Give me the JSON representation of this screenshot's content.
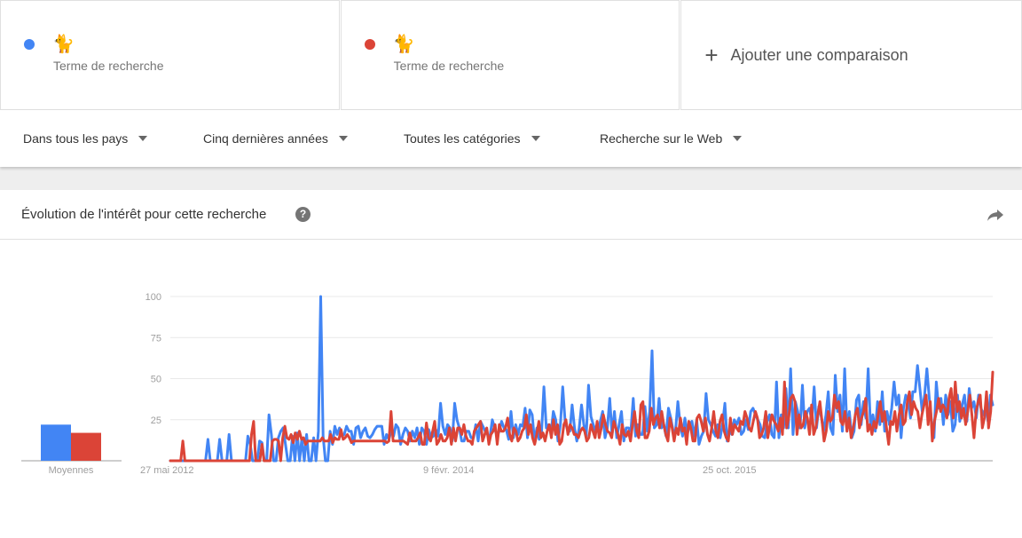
{
  "terms": [
    {
      "emoji": "🐈",
      "label": "Terme de recherche",
      "color": "#4285f4"
    },
    {
      "emoji": "🐈",
      "label": "Terme de recherche",
      "color": "#db4437"
    }
  ],
  "add_comparison": {
    "label": "Ajouter une comparaison",
    "icon": "plus-icon"
  },
  "filters": {
    "region": "Dans tous les pays",
    "period": "Cinq dernières années",
    "category": "Toutes les catégories",
    "search_type": "Recherche sur le Web"
  },
  "card": {
    "title": "Évolution de l'intérêt pour cette recherche",
    "help_icon": "?",
    "share_icon": "share-icon"
  },
  "chart_data": [
    {
      "type": "bar",
      "categories": [
        "Moyennes"
      ],
      "series": [
        {
          "values": [
            22
          ],
          "color": "#4285f4"
        },
        {
          "values": [
            17
          ],
          "color": "#db4437"
        }
      ]
    },
    {
      "type": "line",
      "x_tick_labels": [
        "27 mai 2012",
        "9 févr. 2014",
        "25 oct. 2015"
      ],
      "y_ticks": [
        25,
        50,
        75,
        100
      ],
      "ylim": [
        0,
        100
      ],
      "grid": true,
      "series": [
        {
          "color": "#4285f4",
          "values": [
            0,
            0,
            0,
            0,
            0,
            0,
            0,
            0,
            0,
            0,
            0,
            0,
            0,
            0,
            0,
            0,
            13,
            0,
            0,
            0,
            0,
            13,
            0,
            0,
            0,
            16,
            0,
            0,
            0,
            0,
            0,
            0,
            0,
            15,
            10,
            0,
            0,
            0,
            12,
            11,
            0,
            0,
            28,
            16,
            0,
            0,
            14,
            18,
            20,
            10,
            0,
            0,
            15,
            0,
            17,
            0,
            14,
            0,
            16,
            0,
            0,
            14,
            0,
            18,
            100,
            15,
            0,
            0,
            18,
            10,
            21,
            16,
            20,
            15,
            16,
            21,
            18,
            18,
            10,
            20,
            21,
            14,
            18,
            20,
            15,
            14,
            16,
            19,
            21,
            21,
            21,
            10,
            16,
            13,
            18,
            15,
            22,
            20,
            10,
            16,
            20,
            18,
            12,
            18,
            14,
            20,
            10,
            20,
            18,
            10,
            19,
            14,
            15,
            19,
            15,
            35,
            21,
            16,
            22,
            20,
            12,
            35,
            25,
            20,
            12,
            12,
            18,
            18,
            14,
            14,
            22,
            12,
            24,
            21,
            18,
            16,
            14,
            25,
            20,
            15,
            18,
            24,
            20,
            19,
            13,
            30,
            14,
            22,
            16,
            22,
            21,
            32,
            14,
            31,
            28,
            12,
            20,
            13,
            18,
            45,
            20,
            22,
            17,
            30,
            25,
            12,
            22,
            45,
            24,
            19,
            18,
            34,
            20,
            12,
            20,
            34,
            22,
            15,
            46,
            27,
            22,
            18,
            18,
            24,
            30,
            14,
            20,
            38,
            16,
            30,
            14,
            22,
            30,
            12,
            20,
            20,
            18,
            38,
            15,
            22,
            16,
            16,
            33,
            18,
            30,
            67,
            20,
            22,
            38,
            20,
            22,
            15,
            32,
            26,
            18,
            18,
            36,
            22,
            15,
            26,
            16,
            22,
            24,
            15,
            25,
            10,
            15,
            18,
            41,
            25,
            22,
            18,
            15,
            22,
            14,
            22,
            35,
            12,
            18,
            16,
            25,
            22,
            26,
            16,
            18,
            25,
            19,
            30,
            32,
            28,
            25,
            22,
            15,
            14,
            24,
            28,
            16,
            14,
            48,
            14,
            28,
            20,
            44,
            20,
            56,
            16,
            36,
            30,
            20,
            46,
            20,
            30,
            32,
            24,
            45,
            20,
            33,
            27,
            18,
            28,
            42,
            20,
            16,
            52,
            30,
            40,
            18,
            56,
            18,
            30,
            14,
            18,
            37,
            40,
            22,
            36,
            26,
            56,
            20,
            28,
            18,
            36,
            22,
            42,
            18,
            30,
            22,
            32,
            48,
            34,
            40,
            14,
            32,
            40,
            36,
            26,
            42,
            42,
            58,
            44,
            30,
            40,
            56,
            38,
            24,
            14,
            48,
            32,
            38,
            22,
            40,
            28,
            36,
            18,
            22,
            40,
            24,
            34,
            40,
            24,
            44,
            32,
            36,
            26,
            40,
            32,
            28,
            32,
            24,
            40,
            34
          ]
        },
        {
          "color": "#db4437",
          "values": [
            0,
            0,
            0,
            0,
            0,
            0,
            12,
            0,
            0,
            0,
            0,
            0,
            0,
            0,
            0,
            0,
            0,
            0,
            0,
            0,
            0,
            0,
            0,
            0,
            0,
            0,
            0,
            0,
            0,
            0,
            0,
            0,
            0,
            0,
            0,
            0,
            0,
            0,
            0,
            16,
            24,
            0,
            0,
            0,
            10,
            0,
            0,
            0,
            0,
            12,
            13,
            13,
            12,
            0,
            14,
            21,
            14,
            13,
            16,
            11,
            17,
            13,
            18,
            13,
            14,
            10,
            12,
            12,
            12,
            12,
            12,
            12,
            12,
            14,
            12,
            12,
            12,
            16,
            11,
            14,
            13,
            13,
            19,
            13,
            14,
            16,
            14,
            11,
            12,
            12,
            12,
            12,
            12,
            12,
            12,
            12,
            12,
            12,
            12,
            12,
            12,
            12,
            12,
            12,
            11,
            12,
            30,
            12,
            12,
            12,
            12,
            12,
            12,
            11,
            10,
            17,
            12,
            12,
            12,
            14,
            17,
            10,
            10,
            23,
            14,
            12,
            18,
            24,
            10,
            12,
            16,
            12,
            12,
            14,
            20,
            10,
            20,
            12,
            20,
            20,
            16,
            22,
            15,
            12,
            12,
            10,
            18,
            20,
            22,
            24,
            12,
            16,
            20,
            10,
            16,
            18,
            22,
            10,
            22,
            18,
            18,
            20,
            26,
            16,
            12,
            20,
            18,
            12,
            14,
            18,
            20,
            28,
            16,
            22,
            14,
            10,
            16,
            24,
            14,
            17,
            12,
            18,
            22,
            14,
            25,
            16,
            22,
            10,
            12,
            22,
            25,
            16,
            22,
            20,
            16,
            16,
            14,
            18,
            20,
            18,
            12,
            14,
            22,
            18,
            14,
            24,
            14,
            20,
            28,
            22,
            18,
            17,
            14,
            24,
            20,
            16,
            10,
            22,
            16,
            15,
            18,
            12,
            22,
            30,
            18,
            14,
            34,
            36,
            14,
            14,
            18,
            32,
            22,
            26,
            28,
            20,
            30,
            22,
            16,
            12,
            26,
            20,
            12,
            20,
            16,
            26,
            18,
            20,
            10,
            24,
            20,
            12,
            12,
            26,
            28,
            24,
            18,
            26,
            16,
            12,
            20,
            30,
            18,
            14,
            24,
            28,
            18,
            14,
            12,
            26,
            16,
            22,
            20,
            18,
            24,
            22,
            30,
            26,
            20,
            18,
            24,
            30,
            26,
            14,
            16,
            20,
            30,
            14,
            22,
            28,
            24,
            22,
            18,
            26,
            16,
            48,
            20,
            26,
            38,
            40,
            36,
            16,
            28,
            20,
            22,
            30,
            26,
            16,
            34,
            16,
            20,
            28,
            36,
            24,
            12,
            18,
            30,
            24,
            26,
            40,
            32,
            36,
            24,
            22,
            30,
            18,
            26,
            14,
            20,
            28,
            32,
            20,
            26,
            30,
            38,
            18,
            22,
            16,
            24,
            20,
            28,
            36,
            24,
            30,
            20,
            10,
            24,
            22,
            30,
            18,
            28,
            34,
            22,
            24,
            36,
            42,
            28,
            36,
            32,
            30,
            20,
            28,
            34,
            40,
            22,
            36,
            12,
            24,
            30,
            38,
            30,
            34,
            32,
            26,
            38,
            44,
            26,
            48,
            30,
            36,
            26,
            32,
            22,
            30,
            40,
            28,
            14,
            30,
            36,
            40,
            20,
            26,
            42,
            20,
            30,
            54
          ]
        }
      ]
    }
  ]
}
